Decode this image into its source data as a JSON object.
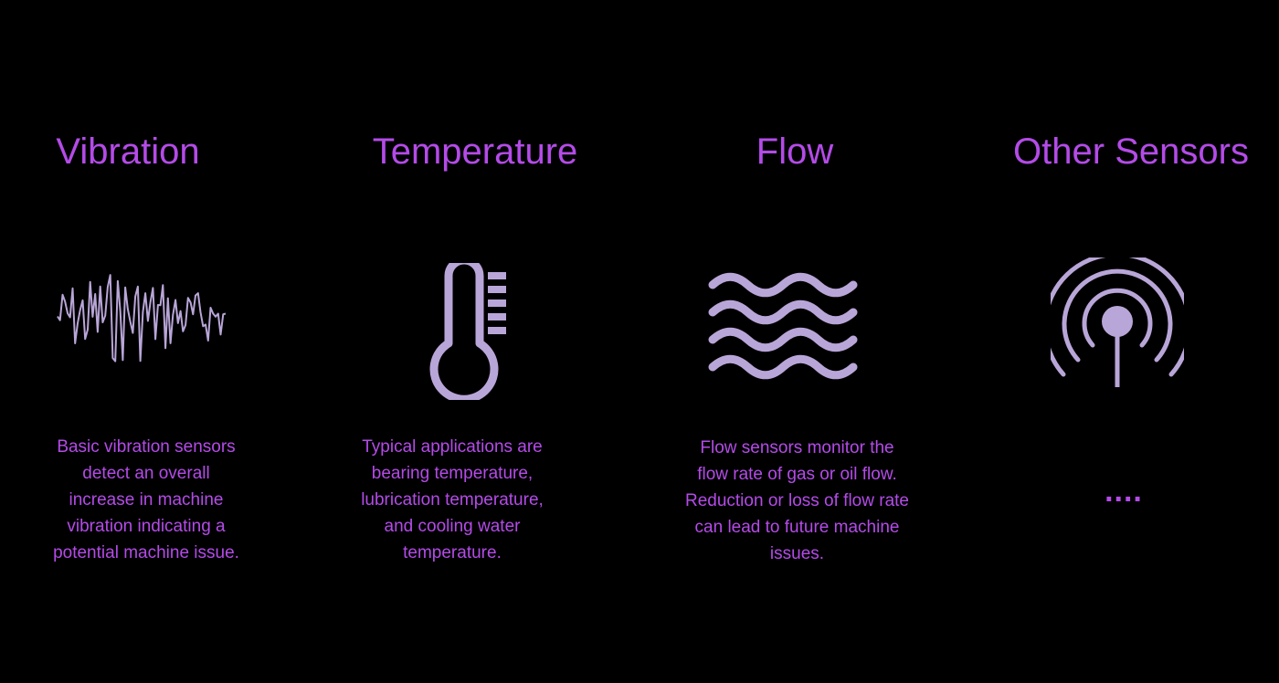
{
  "colors": {
    "background": "#000000",
    "accent_text": "#b44be8",
    "icon": "#b9a6d8"
  },
  "columns": [
    {
      "title": "Vibration",
      "icon": "vibration-waveform-icon",
      "description_lines": [
        "Basic vibration sensors",
        "detect an overall",
        "increase in machine",
        "vibration indicating a",
        "potential machine issue."
      ]
    },
    {
      "title": "Temperature",
      "icon": "thermometer-icon",
      "description_lines": [
        "Typical applications are",
        "bearing temperature,",
        "lubrication temperature,",
        "and cooling water",
        "temperature."
      ]
    },
    {
      "title": "Flow",
      "icon": "flow-waves-icon",
      "description_lines": [
        "Flow sensors monitor the",
        "flow rate of gas or oil flow.",
        "Reduction or loss of flow rate",
        "can lead to future machine",
        "issues."
      ]
    },
    {
      "title": "Other Sensors",
      "icon": "wireless-sensor-icon",
      "description": "...."
    }
  ]
}
